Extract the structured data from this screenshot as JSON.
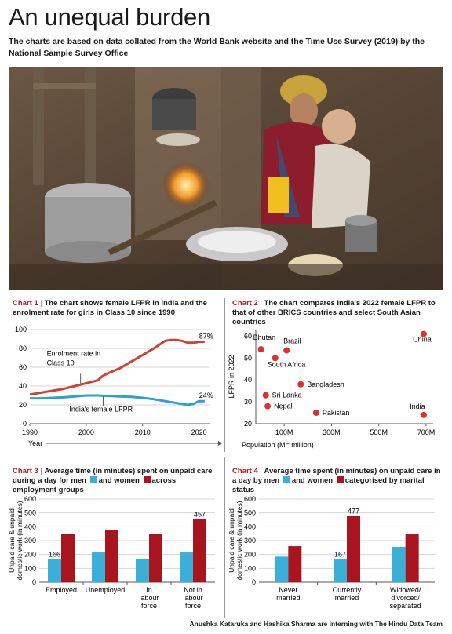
{
  "page": {
    "title": "An unequal burden",
    "subtitle": "The charts are based on data collated from the World Bank website and the Time Use Survey (2019) by the National Sample Survey Office",
    "credit": "Anushka Kataruka and Hashika Sharma are interning with The Hindu Data Team"
  },
  "colors": {
    "red": "#d2412f",
    "blue": "#2aa1d6",
    "teal": "#3ab0d8",
    "maroon": "#a8151e",
    "gridline": "#cccccc"
  },
  "chart_data": [
    {
      "id": "chart1",
      "type": "line",
      "label": "Chart 1",
      "title": "The chart shows female LFPR in India and the enrolment rate for girls in Class 10 since 1990",
      "xlabel": "Year",
      "ylabel": "",
      "xlim": [
        1990,
        2022
      ],
      "ylim": [
        0,
        100
      ],
      "xticks": [
        "1990",
        "2000",
        "2010",
        "2020"
      ],
      "yticks": [
        "0",
        "20",
        "40",
        "60",
        "80",
        "100"
      ],
      "series": [
        {
          "name": "Enrolment rate in Class 10",
          "color": "#d2412f",
          "x": [
            1990,
            1992,
            1994,
            1996,
            1998,
            2000,
            2002,
            2003,
            2004,
            2006,
            2008,
            2010,
            2012,
            2014,
            2015,
            2016,
            2017,
            2018,
            2019,
            2020,
            2021
          ],
          "y": [
            31,
            33,
            35,
            37,
            40,
            43,
            46,
            51,
            54,
            59,
            66,
            73,
            80,
            88,
            89,
            89,
            88,
            86,
            86,
            87,
            87
          ],
          "end_label": "87%"
        },
        {
          "name": "India's female LFPR",
          "color": "#2aa1d6",
          "x": [
            1990,
            1992,
            1994,
            1996,
            1998,
            2000,
            2002,
            2004,
            2006,
            2008,
            2010,
            2012,
            2014,
            2016,
            2018,
            2019,
            2020,
            2021
          ],
          "y": [
            27,
            27,
            27.5,
            28,
            29,
            30,
            30,
            29.5,
            29,
            28.5,
            27.5,
            26,
            24,
            22,
            20,
            21,
            24,
            24
          ],
          "end_label": "24%"
        }
      ]
    },
    {
      "id": "chart2",
      "type": "scatter",
      "label": "Chart 2",
      "title": "The chart compares India's 2022 female LFPR to that of other BRICS countries and select South Asian countries",
      "xlabel": "Population (M= million)",
      "ylabel": "LFPR in 2022",
      "xlim": [
        -20,
        730
      ],
      "ylim": [
        20,
        63
      ],
      "xticks": [
        "100M",
        "300M",
        "500M",
        "700M"
      ],
      "yticks": [
        "20",
        "30",
        "40",
        "50",
        "60"
      ],
      "points": [
        {
          "label": "China",
          "x": 690,
          "y": 61
        },
        {
          "label": "Bhutan",
          "x": 2,
          "y": 54
        },
        {
          "label": "Brazil",
          "x": 110,
          "y": 53.5
        },
        {
          "label": "South Africa",
          "x": 62,
          "y": 50
        },
        {
          "label": "Bangladesh",
          "x": 170,
          "y": 38
        },
        {
          "label": "Sri Lanka",
          "x": 22,
          "y": 33
        },
        {
          "label": "Nepal",
          "x": 30,
          "y": 28
        },
        {
          "label": "Pakistan",
          "x": 235,
          "y": 25
        },
        {
          "label": "India",
          "x": 690,
          "y": 24
        }
      ]
    },
    {
      "id": "chart3",
      "type": "bar",
      "label": "Chart 3",
      "title_parts": [
        "Average time (in minutes) spent on unpaid care during a day for men",
        "and women",
        "across employment groups"
      ],
      "ylabel": "Unpaid care & unpaid domestic work (in minutes)",
      "ylim": [
        0,
        600
      ],
      "yticks": [
        "0",
        "100",
        "200",
        "300",
        "400",
        "500",
        "600"
      ],
      "categories": [
        "Employed",
        "Unemployed",
        "In labour force",
        "Not in labour force"
      ],
      "series": [
        {
          "name": "men",
          "color": "#3ab0d8",
          "values": [
            166,
            215,
            170,
            215
          ]
        },
        {
          "name": "women",
          "color": "#a8151e",
          "values": [
            348,
            378,
            350,
            457
          ]
        }
      ],
      "data_labels": [
        {
          "series": 0,
          "index": 0,
          "text": "166"
        },
        {
          "series": 1,
          "index": 3,
          "text": "457"
        }
      ]
    },
    {
      "id": "chart4",
      "type": "bar",
      "label": "Chart 4",
      "title_parts": [
        "Average time spent (in minutes) on unpaid care in a day by men",
        "and women",
        "categorised by marital status"
      ],
      "ylabel": "Unpaid care & unpaid domestic work (in minutes)",
      "ylim": [
        0,
        600
      ],
      "yticks": [
        "0",
        "100",
        "200",
        "300",
        "400",
        "500",
        "600"
      ],
      "categories": [
        "Never married",
        "Currently married",
        "Widowed/ divorced/ separated"
      ],
      "series": [
        {
          "name": "men",
          "color": "#3ab0d8",
          "values": [
            185,
            167,
            255
          ]
        },
        {
          "name": "women",
          "color": "#a8151e",
          "values": [
            260,
            477,
            345
          ]
        }
      ],
      "data_labels": [
        {
          "series": 0,
          "index": 1,
          "text": "167"
        },
        {
          "series": 1,
          "index": 1,
          "text": "477"
        }
      ]
    }
  ]
}
